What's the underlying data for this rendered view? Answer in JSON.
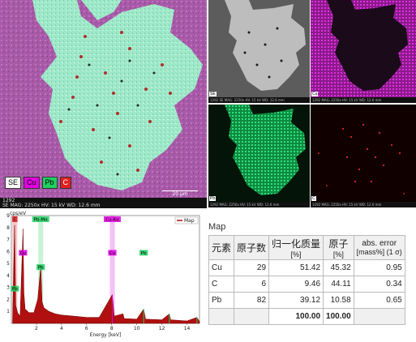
{
  "main_map": {
    "legend": [
      "SE",
      "Cu",
      "Pb",
      "C"
    ],
    "legend_colors": {
      "SE": "#ffffff",
      "Cu": "#e000e0",
      "Pb": "#20d060",
      "C": "#e02020"
    },
    "footer_line1": "1292",
    "footer_line2": "SE   MAG: 2250x   HV: 15 kV   WD: 12.6 mm",
    "scale": "20 µm"
  },
  "thumbs": [
    {
      "tag": "SE",
      "footer": "1292  SE  MAG: 2250x  HV: 15 kV  WD: 12.6 mm",
      "scale": "20 µm"
    },
    {
      "tag": "Cu",
      "footer": "1292  MAG: 2250x  HV: 15 kV  WD: 12.6 mm",
      "scale": "20 µm"
    },
    {
      "tag": "Pb",
      "footer": "1292  MAG: 2250x  HV: 15 kV  WD: 12.6 mm",
      "scale": "20 µm"
    },
    {
      "tag": "C",
      "footer": "1292  MAG: 2250x  HV: 15 kV  WD: 12.6 mm",
      "scale": "20 µm"
    }
  ],
  "chart_data": {
    "type": "area",
    "ylabel": "cps/eV",
    "xlabel": "Energy [keV]",
    "xlim": [
      0,
      15
    ],
    "ylim": [
      0,
      9
    ],
    "xticks": [
      2,
      4,
      6,
      8,
      10,
      12,
      14
    ],
    "yticks": [
      1,
      2,
      3,
      4,
      5,
      6,
      7,
      8,
      9
    ],
    "legend": "Map",
    "series": [
      {
        "name": "Map",
        "points": [
          [
            0.1,
            0.2
          ],
          [
            0.26,
            8.2
          ],
          [
            0.35,
            1.5
          ],
          [
            0.5,
            0.9
          ],
          [
            0.7,
            0.6
          ],
          [
            0.93,
            7.9
          ],
          [
            1.0,
            2.5
          ],
          [
            1.1,
            1.2
          ],
          [
            1.4,
            0.9
          ],
          [
            1.8,
            0.9
          ],
          [
            2.1,
            2.0
          ],
          [
            2.35,
            4.8
          ],
          [
            2.45,
            1.8
          ],
          [
            2.6,
            1.3
          ],
          [
            3.0,
            1.0
          ],
          [
            3.5,
            0.8
          ],
          [
            4.0,
            0.7
          ],
          [
            5.0,
            0.6
          ],
          [
            6.0,
            0.5
          ],
          [
            7.0,
            0.5
          ],
          [
            8.05,
            2.4
          ],
          [
            8.2,
            0.6
          ],
          [
            8.9,
            0.8
          ],
          [
            9.0,
            0.4
          ],
          [
            10.0,
            0.35
          ],
          [
            10.55,
            1.2
          ],
          [
            10.7,
            0.35
          ],
          [
            12.0,
            0.3
          ],
          [
            12.6,
            0.8
          ],
          [
            12.7,
            0.3
          ],
          [
            14.0,
            0.2
          ],
          [
            14.8,
            0.5
          ],
          [
            15.0,
            0.15
          ]
        ]
      }
    ],
    "peak_labels": [
      {
        "text": "C",
        "x": 0.28,
        "y": 9.0,
        "color": "#e02020"
      },
      {
        "text": "Pb-Mα",
        "x": 2.34,
        "y": 9.0,
        "color": "#20d060"
      },
      {
        "text": "Cu-Kα",
        "x": 8.05,
        "y": 9.0,
        "color": "#e000e0"
      },
      {
        "text": "Cu",
        "x": 0.93,
        "y": 6.2,
        "color": "#e000e0"
      },
      {
        "text": "Pb",
        "x": 2.34,
        "y": 5.0,
        "color": "#20d060"
      },
      {
        "text": "Pb",
        "x": 0.28,
        "y": 3.2,
        "color": "#20d060"
      },
      {
        "text": "Cu",
        "x": 8.05,
        "y": 6.2,
        "color": "#e000e0"
      },
      {
        "text": "Pb",
        "x": 10.55,
        "y": 6.2,
        "color": "#20d060"
      }
    ],
    "colors": {
      "peak_c": "#e02020",
      "peak_cu": "#e000e0",
      "peak_pb": "#20d060",
      "fill": "#b01010"
    }
  },
  "results": {
    "title": "Map",
    "headers": [
      "元素",
      "原子数",
      "归一化质量",
      "[%]",
      "原子",
      "[%]",
      "abs. error",
      "[mass%] (1 σ)"
    ],
    "rows": [
      {
        "el": "Cu",
        "z": "29",
        "mass": "51.42",
        "atom": "45.32",
        "err": "0.95"
      },
      {
        "el": "C",
        "z": "6",
        "mass": "9.46",
        "atom": "44.11",
        "err": "0.34"
      },
      {
        "el": "Pb",
        "z": "82",
        "mass": "39.12",
        "atom": "10.58",
        "err": "0.65"
      }
    ],
    "total_mass": "100.00",
    "total_atom": "100.00"
  }
}
